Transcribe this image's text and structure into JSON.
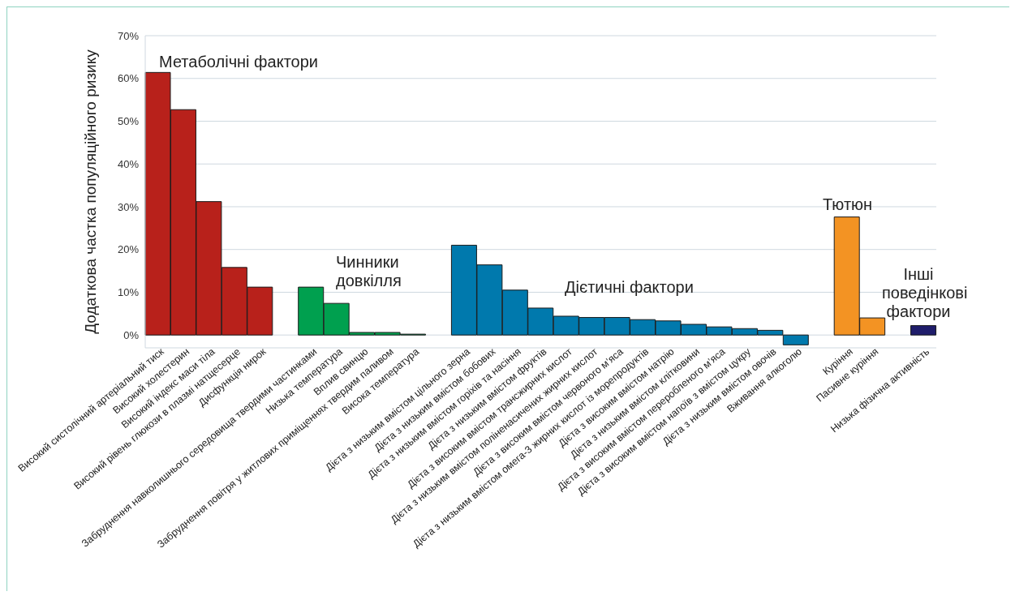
{
  "chart_data": {
    "type": "bar",
    "ylabel": "Додаткова частка популяційного ризику",
    "categories": [
      "Високий систолічний артеріальний тиск",
      "Високий холестерин",
      "Високий індекс маси тіла",
      "Високий рівень глюкози в плазмі натщесерце",
      "Дисфункція нирок",
      null,
      "Забруднення навколишнього середовища твердими частинками",
      "Низька температура",
      "Вплив свинцю",
      "Забруднення повітря у житлових приміщеннях твердим паливом",
      "Висока температура",
      null,
      "Дієта з низьким вмістом цільного зерна",
      "Дієта з низьким вмістом бобових",
      "Дієта з низьким вмістом горіхів та насіння",
      "Дієта з низьким вмістом фруктів",
      "Дієта з високим вмістом трансжирних кислот",
      "Дієта з низьким вмістом поліненасичених жирних кислот",
      "Дієта з високим вмістом червоного м’яса",
      "Дієта з низьким вмістом омега-3 жирних кислот із морепродуктів",
      "Дієта з високим вмістом натрію",
      "Дієта з низьким вмістом клітковини",
      "Дієта з високим вмістом переробленого м’яса",
      "Дієта з високим вмістом напоїв з вмістом цукру",
      "Дієта з низьким вмістом овочів",
      "Вживання алкоголю",
      null,
      "Куріння",
      "Пасивне куріння",
      null,
      "Низька фізична активність"
    ],
    "values": [
      61.4,
      52.7,
      31.2,
      15.8,
      11.2,
      null,
      11.2,
      7.4,
      0.6,
      0.6,
      0.2,
      null,
      21.0,
      16.4,
      10.5,
      6.3,
      4.4,
      4.1,
      4.1,
      3.6,
      3.3,
      2.5,
      1.9,
      1.5,
      1.1,
      -2.3,
      null,
      27.6,
      4.0,
      null,
      2.2
    ],
    "colors": [
      "#b8211b",
      "#b8211b",
      "#b8211b",
      "#b8211b",
      "#b8211b",
      null,
      "#00a04f",
      "#00a04f",
      "#00a04f",
      "#00a04f",
      "#00a04f",
      null,
      "#0079ad",
      "#0079ad",
      "#0079ad",
      "#0079ad",
      "#0079ad",
      "#0079ad",
      "#0079ad",
      "#0079ad",
      "#0079ad",
      "#0079ad",
      "#0079ad",
      "#0079ad",
      "#0079ad",
      "#0079ad",
      null,
      "#f39323",
      "#f39323",
      null,
      "#1f1d6b"
    ],
    "ylim": [
      -3,
      70
    ],
    "yticks": [
      {
        "value": 0,
        "label": "0%"
      },
      {
        "value": 10,
        "label": "10%"
      },
      {
        "value": 20,
        "label": "20%"
      },
      {
        "value": 30,
        "label": "30%"
      },
      {
        "value": 40,
        "label": "40%"
      },
      {
        "value": 50,
        "label": "50%"
      },
      {
        "value": 60,
        "label": "60%"
      },
      {
        "value": 70,
        "label": "70%"
      }
    ],
    "grid": "y",
    "annotations": [
      "Метаболічні фактори",
      "Чинники довкілля",
      "Дієтичні фактори",
      "Тютюн",
      "Інші поведінкові фактори"
    ]
  }
}
